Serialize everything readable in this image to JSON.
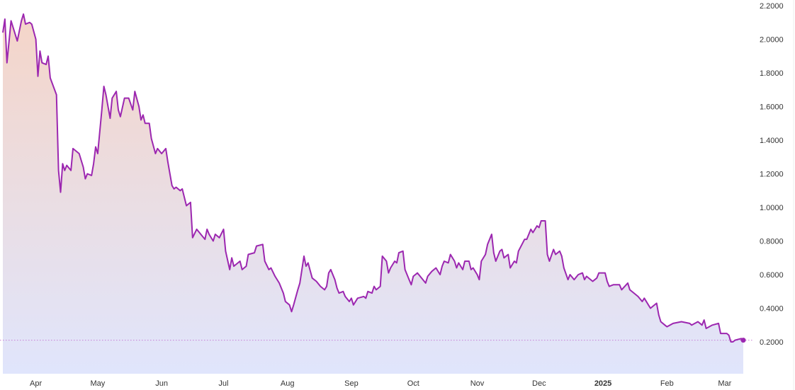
{
  "chart_data": {
    "type": "area",
    "title": "",
    "xlabel": "",
    "ylabel": "",
    "ylim": [
      0.01,
      2.2
    ],
    "xlim": [
      "2024-03-16",
      "2025-03-10"
    ],
    "grid": false,
    "legend": "none",
    "y_ticks": [
      "0.2000",
      "0.4000",
      "0.6000",
      "0.8000",
      "1.0000",
      "1.2000",
      "1.4000",
      "1.6000",
      "1.8000",
      "2.0000",
      "2.2000"
    ],
    "x_ticks": [
      {
        "date": "2024-04-01",
        "label": "Apr",
        "bold": false
      },
      {
        "date": "2024-05-01",
        "label": "May",
        "bold": false
      },
      {
        "date": "2024-06-01",
        "label": "Jun",
        "bold": false
      },
      {
        "date": "2024-07-01",
        "label": "Jul",
        "bold": false
      },
      {
        "date": "2024-08-01",
        "label": "Aug",
        "bold": false
      },
      {
        "date": "2024-09-01",
        "label": "Sep",
        "bold": false
      },
      {
        "date": "2024-10-01",
        "label": "Oct",
        "bold": false
      },
      {
        "date": "2024-11-01",
        "label": "Nov",
        "bold": false
      },
      {
        "date": "2024-12-01",
        "label": "Dec",
        "bold": false
      },
      {
        "date": "2025-01-01",
        "label": "2025",
        "bold": true
      },
      {
        "date": "2025-02-01",
        "label": "Feb",
        "bold": false
      },
      {
        "date": "2025-03-01",
        "label": "Mar",
        "bold": false
      }
    ],
    "colors": {
      "line": "#9c27b0",
      "fill_top": "#f5d5c8",
      "fill_bottom": "#e0e5fc",
      "last_price_line": "#c77dd6"
    },
    "last_value": 0.21,
    "points": [
      [
        "2024-03-16",
        2.04
      ],
      [
        "2024-03-17",
        2.12
      ],
      [
        "2024-03-18",
        1.86
      ],
      [
        "2024-03-20",
        2.11
      ],
      [
        "2024-03-23",
        1.99
      ],
      [
        "2024-03-25",
        2.11
      ],
      [
        "2024-03-26",
        2.15
      ],
      [
        "2024-03-27",
        2.09
      ],
      [
        "2024-03-29",
        2.1
      ],
      [
        "2024-03-30",
        2.09
      ],
      [
        "2024-04-01",
        2.0
      ],
      [
        "2024-04-02",
        1.78
      ],
      [
        "2024-04-03",
        1.93
      ],
      [
        "2024-04-04",
        1.86
      ],
      [
        "2024-04-06",
        1.85
      ],
      [
        "2024-04-07",
        1.9
      ],
      [
        "2024-04-08",
        1.77
      ],
      [
        "2024-04-11",
        1.67
      ],
      [
        "2024-04-12",
        1.22
      ],
      [
        "2024-04-13",
        1.09
      ],
      [
        "2024-04-14",
        1.26
      ],
      [
        "2024-04-15",
        1.22
      ],
      [
        "2024-04-16",
        1.25
      ],
      [
        "2024-04-18",
        1.22
      ],
      [
        "2024-04-19",
        1.35
      ],
      [
        "2024-04-22",
        1.32
      ],
      [
        "2024-04-24",
        1.24
      ],
      [
        "2024-04-25",
        1.17
      ],
      [
        "2024-04-26",
        1.2
      ],
      [
        "2024-04-28",
        1.19
      ],
      [
        "2024-04-29",
        1.26
      ],
      [
        "2024-04-30",
        1.36
      ],
      [
        "2024-05-01",
        1.32
      ],
      [
        "2024-05-03",
        1.58
      ],
      [
        "2024-05-04",
        1.72
      ],
      [
        "2024-05-05",
        1.67
      ],
      [
        "2024-05-07",
        1.53
      ],
      [
        "2024-05-08",
        1.65
      ],
      [
        "2024-05-10",
        1.69
      ],
      [
        "2024-05-11",
        1.58
      ],
      [
        "2024-05-12",
        1.54
      ],
      [
        "2024-05-14",
        1.65
      ],
      [
        "2024-05-16",
        1.65
      ],
      [
        "2024-05-18",
        1.58
      ],
      [
        "2024-05-19",
        1.69
      ],
      [
        "2024-05-21",
        1.6
      ],
      [
        "2024-05-22",
        1.52
      ],
      [
        "2024-05-23",
        1.55
      ],
      [
        "2024-05-24",
        1.5
      ],
      [
        "2024-05-26",
        1.5
      ],
      [
        "2024-05-27",
        1.41
      ],
      [
        "2024-05-29",
        1.32
      ],
      [
        "2024-05-30",
        1.35
      ],
      [
        "2024-06-01",
        1.32
      ],
      [
        "2024-06-03",
        1.35
      ],
      [
        "2024-06-04",
        1.27
      ],
      [
        "2024-06-06",
        1.13
      ],
      [
        "2024-06-07",
        1.11
      ],
      [
        "2024-06-08",
        1.12
      ],
      [
        "2024-06-10",
        1.1
      ],
      [
        "2024-06-11",
        1.11
      ],
      [
        "2024-06-13",
        1.01
      ],
      [
        "2024-06-15",
        1.03
      ],
      [
        "2024-06-16",
        0.82
      ],
      [
        "2024-06-18",
        0.87
      ],
      [
        "2024-06-20",
        0.84
      ],
      [
        "2024-06-22",
        0.81
      ],
      [
        "2024-06-23",
        0.87
      ],
      [
        "2024-06-24",
        0.84
      ],
      [
        "2024-06-26",
        0.8
      ],
      [
        "2024-06-27",
        0.84
      ],
      [
        "2024-06-29",
        0.82
      ],
      [
        "2024-07-01",
        0.87
      ],
      [
        "2024-07-02",
        0.74
      ],
      [
        "2024-07-04",
        0.63
      ],
      [
        "2024-07-05",
        0.7
      ],
      [
        "2024-07-06",
        0.65
      ],
      [
        "2024-07-09",
        0.68
      ],
      [
        "2024-07-10",
        0.63
      ],
      [
        "2024-07-12",
        0.65
      ],
      [
        "2024-07-13",
        0.72
      ],
      [
        "2024-07-16",
        0.73
      ],
      [
        "2024-07-17",
        0.77
      ],
      [
        "2024-07-20",
        0.78
      ],
      [
        "2024-07-21",
        0.68
      ],
      [
        "2024-07-23",
        0.63
      ],
      [
        "2024-07-24",
        0.64
      ],
      [
        "2024-07-26",
        0.59
      ],
      [
        "2024-07-28",
        0.55
      ],
      [
        "2024-07-30",
        0.49
      ],
      [
        "2024-07-31",
        0.44
      ],
      [
        "2024-08-02",
        0.42
      ],
      [
        "2024-08-03",
        0.38
      ],
      [
        "2024-08-04",
        0.42
      ],
      [
        "2024-08-06",
        0.51
      ],
      [
        "2024-08-07",
        0.55
      ],
      [
        "2024-08-09",
        0.71
      ],
      [
        "2024-08-10",
        0.65
      ],
      [
        "2024-08-11",
        0.67
      ],
      [
        "2024-08-13",
        0.58
      ],
      [
        "2024-08-15",
        0.56
      ],
      [
        "2024-08-17",
        0.53
      ],
      [
        "2024-08-19",
        0.51
      ],
      [
        "2024-08-20",
        0.53
      ],
      [
        "2024-08-21",
        0.61
      ],
      [
        "2024-08-22",
        0.63
      ],
      [
        "2024-08-24",
        0.57
      ],
      [
        "2024-08-25",
        0.52
      ],
      [
        "2024-08-26",
        0.49
      ],
      [
        "2024-08-28",
        0.5
      ],
      [
        "2024-08-29",
        0.47
      ],
      [
        "2024-08-31",
        0.44
      ],
      [
        "2024-09-01",
        0.46
      ],
      [
        "2024-09-02",
        0.42
      ],
      [
        "2024-09-04",
        0.46
      ],
      [
        "2024-09-07",
        0.47
      ],
      [
        "2024-09-08",
        0.46
      ],
      [
        "2024-09-09",
        0.5
      ],
      [
        "2024-09-11",
        0.49
      ],
      [
        "2024-09-12",
        0.53
      ],
      [
        "2024-09-13",
        0.51
      ],
      [
        "2024-09-15",
        0.53
      ],
      [
        "2024-09-16",
        0.71
      ],
      [
        "2024-09-18",
        0.68
      ],
      [
        "2024-09-19",
        0.61
      ],
      [
        "2024-09-20",
        0.64
      ],
      [
        "2024-09-22",
        0.68
      ],
      [
        "2024-09-23",
        0.67
      ],
      [
        "2024-09-24",
        0.73
      ],
      [
        "2024-09-26",
        0.74
      ],
      [
        "2024-09-27",
        0.63
      ],
      [
        "2024-09-29",
        0.57
      ],
      [
        "2024-09-30",
        0.54
      ],
      [
        "2024-10-01",
        0.59
      ],
      [
        "2024-10-03",
        0.61
      ],
      [
        "2024-10-05",
        0.58
      ],
      [
        "2024-10-07",
        0.55
      ],
      [
        "2024-10-08",
        0.59
      ],
      [
        "2024-10-10",
        0.62
      ],
      [
        "2024-10-12",
        0.64
      ],
      [
        "2024-10-14",
        0.6
      ],
      [
        "2024-10-15",
        0.65
      ],
      [
        "2024-10-16",
        0.68
      ],
      [
        "2024-10-18",
        0.67
      ],
      [
        "2024-10-19",
        0.72
      ],
      [
        "2024-10-21",
        0.68
      ],
      [
        "2024-10-22",
        0.64
      ],
      [
        "2024-10-23",
        0.67
      ],
      [
        "2024-10-25",
        0.63
      ],
      [
        "2024-10-26",
        0.68
      ],
      [
        "2024-10-28",
        0.68
      ],
      [
        "2024-10-29",
        0.63
      ],
      [
        "2024-10-30",
        0.64
      ],
      [
        "2024-11-01",
        0.6
      ],
      [
        "2024-11-02",
        0.57
      ],
      [
        "2024-11-03",
        0.68
      ],
      [
        "2024-11-05",
        0.72
      ],
      [
        "2024-11-06",
        0.78
      ],
      [
        "2024-11-08",
        0.84
      ],
      [
        "2024-11-09",
        0.73
      ],
      [
        "2024-11-10",
        0.68
      ],
      [
        "2024-11-12",
        0.74
      ],
      [
        "2024-11-13",
        0.75
      ],
      [
        "2024-11-14",
        0.7
      ],
      [
        "2024-11-16",
        0.72
      ],
      [
        "2024-11-17",
        0.64
      ],
      [
        "2024-11-19",
        0.68
      ],
      [
        "2024-11-20",
        0.67
      ],
      [
        "2024-11-21",
        0.74
      ],
      [
        "2024-11-24",
        0.81
      ],
      [
        "2024-11-25",
        0.81
      ],
      [
        "2024-11-27",
        0.87
      ],
      [
        "2024-11-28",
        0.85
      ],
      [
        "2024-11-30",
        0.89
      ],
      [
        "2024-12-01",
        0.88
      ],
      [
        "2024-12-02",
        0.92
      ],
      [
        "2024-12-04",
        0.92
      ],
      [
        "2024-12-05",
        0.72
      ],
      [
        "2024-12-06",
        0.68
      ],
      [
        "2024-12-08",
        0.75
      ],
      [
        "2024-12-09",
        0.72
      ],
      [
        "2024-12-11",
        0.74
      ],
      [
        "2024-12-12",
        0.71
      ],
      [
        "2024-12-13",
        0.64
      ],
      [
        "2024-12-15",
        0.57
      ],
      [
        "2024-12-16",
        0.6
      ],
      [
        "2024-12-18",
        0.57
      ],
      [
        "2024-12-20",
        0.6
      ],
      [
        "2024-12-22",
        0.61
      ],
      [
        "2024-12-23",
        0.57
      ],
      [
        "2024-12-24",
        0.59
      ],
      [
        "2024-12-27",
        0.56
      ],
      [
        "2024-12-29",
        0.58
      ],
      [
        "2024-12-30",
        0.61
      ],
      [
        "2025-01-02",
        0.61
      ],
      [
        "2025-01-03",
        0.56
      ],
      [
        "2025-01-04",
        0.53
      ],
      [
        "2025-01-06",
        0.54
      ],
      [
        "2025-01-09",
        0.54
      ],
      [
        "2025-01-10",
        0.51
      ],
      [
        "2025-01-13",
        0.55
      ],
      [
        "2025-01-14",
        0.51
      ],
      [
        "2025-01-16",
        0.49
      ],
      [
        "2025-01-18",
        0.47
      ],
      [
        "2025-01-20",
        0.44
      ],
      [
        "2025-01-21",
        0.46
      ],
      [
        "2025-01-24",
        0.4
      ],
      [
        "2025-01-27",
        0.43
      ],
      [
        "2025-01-28",
        0.36
      ],
      [
        "2025-01-29",
        0.32
      ],
      [
        "2025-01-31",
        0.3
      ],
      [
        "2025-02-01",
        0.29
      ],
      [
        "2025-02-04",
        0.31
      ],
      [
        "2025-02-08",
        0.32
      ],
      [
        "2025-02-12",
        0.31
      ],
      [
        "2025-02-13",
        0.3
      ],
      [
        "2025-02-16",
        0.32
      ],
      [
        "2025-02-18",
        0.3
      ],
      [
        "2025-02-19",
        0.33
      ],
      [
        "2025-02-20",
        0.28
      ],
      [
        "2025-02-23",
        0.3
      ],
      [
        "2025-02-26",
        0.31
      ],
      [
        "2025-02-27",
        0.25
      ],
      [
        "2025-03-02",
        0.25
      ],
      [
        "2025-03-03",
        0.24
      ],
      [
        "2025-03-04",
        0.2
      ],
      [
        "2025-03-05",
        0.2
      ],
      [
        "2025-03-06",
        0.21
      ],
      [
        "2025-03-09",
        0.22
      ],
      [
        "2025-03-10",
        0.21
      ]
    ]
  }
}
